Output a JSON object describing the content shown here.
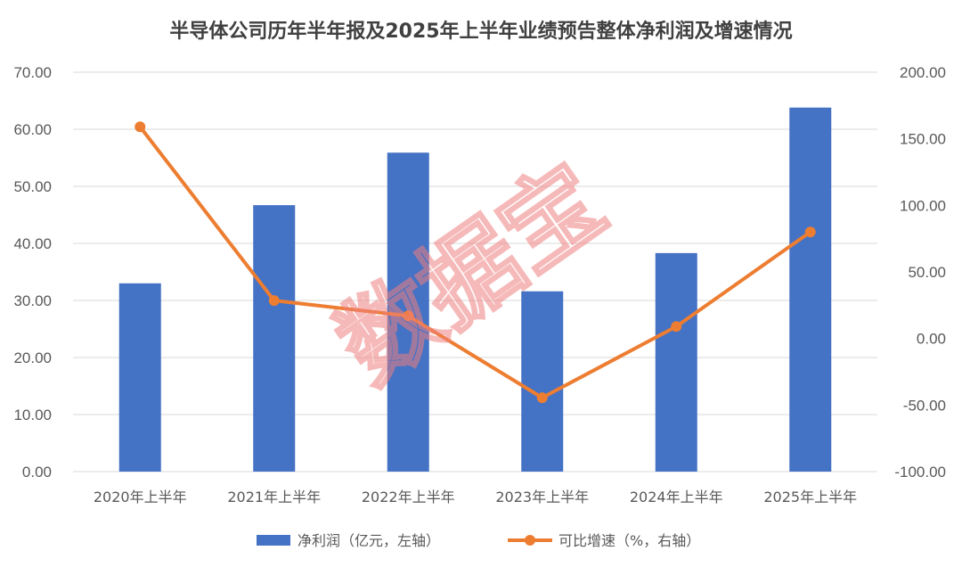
{
  "chart_data": {
    "type": "bar",
    "title": "半导体公司历年半年报及2025年上半年业绩预告整体净利润及增速情况",
    "categories": [
      "2020年上半年",
      "2021年上半年",
      "2022年上半年",
      "2023年上半年",
      "2024年上半年",
      "2025年上半年"
    ],
    "series": [
      {
        "name": "净利润（亿元，左轴）",
        "type": "bar",
        "axis": "left",
        "color": "#4472C4",
        "values": [
          33.0,
          46.7,
          55.9,
          31.6,
          38.3,
          63.8
        ]
      },
      {
        "name": "可比增速（%，右轴）",
        "type": "line",
        "axis": "right",
        "color": "#ED7D31",
        "values": [
          159.0,
          28.5,
          17.0,
          -44.5,
          9.0,
          80.0
        ]
      }
    ],
    "y_left": {
      "range": [
        0,
        70
      ],
      "ticks": [
        "0.00",
        "10.00",
        "20.00",
        "30.00",
        "40.00",
        "50.00",
        "60.00",
        "70.00"
      ]
    },
    "y_right": {
      "range": [
        -100,
        200
      ],
      "ticks": [
        "-100.00",
        "-50.00",
        "0.00",
        "50.00",
        "100.00",
        "150.00",
        "200.00"
      ]
    },
    "grid": true,
    "legend": "bottom"
  },
  "watermark": "数据宝"
}
